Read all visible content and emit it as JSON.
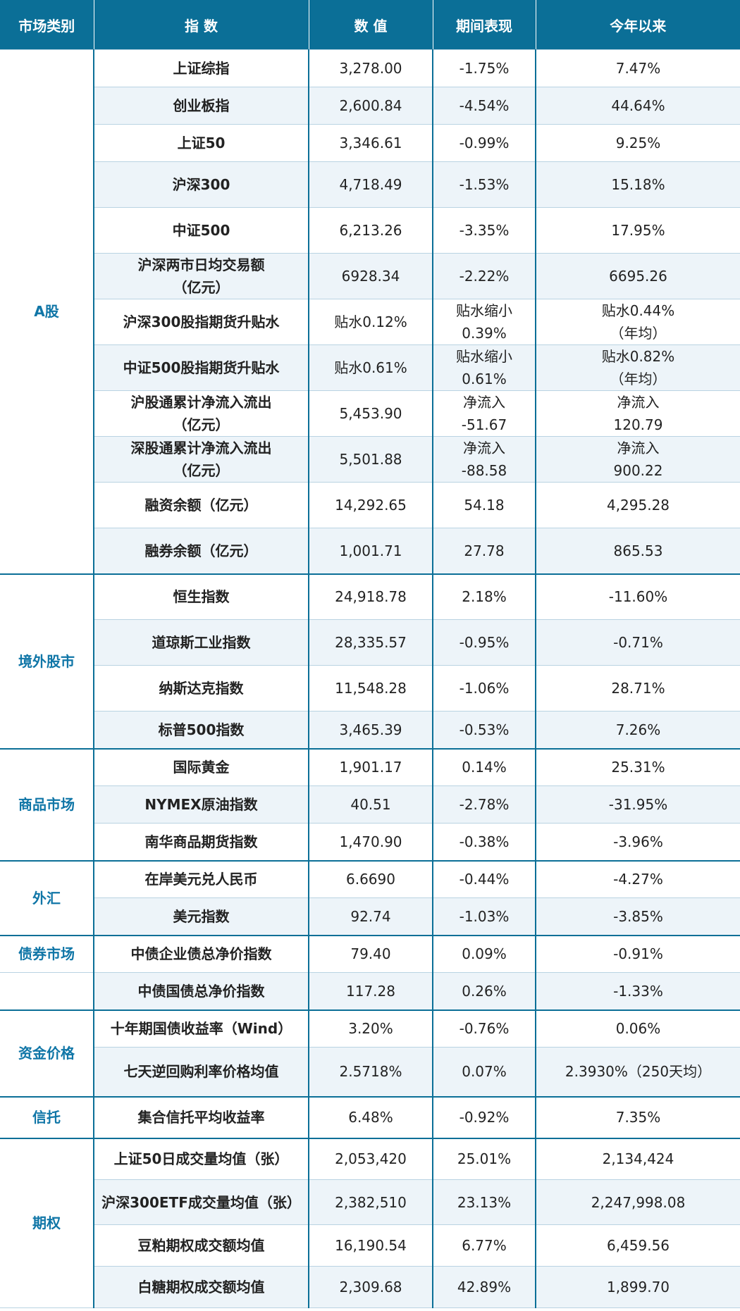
{
  "headers": {
    "category": "市场类别",
    "index": "指 数",
    "value": "数 值",
    "period": "期间表现",
    "ytd": "今年以来"
  },
  "rows": [
    {
      "category": "A股",
      "name": "上证综指",
      "value": "3,278.00",
      "period": "-1.75%",
      "ytd": "7.47%"
    },
    {
      "name": "创业板指",
      "value": "2,600.84",
      "period": "-4.54%",
      "ytd": "44.64%"
    },
    {
      "name": "上证50",
      "value": "3,346.61",
      "period": "-0.99%",
      "ytd": "9.25%"
    },
    {
      "name": "沪深300",
      "value": "4,718.49",
      "period": "-1.53%",
      "ytd": "15.18%"
    },
    {
      "name": "中证500",
      "value": "6,213.26",
      "period": "-3.35%",
      "ytd": "17.95%"
    },
    {
      "name": "沪深两市日均交易额\n（亿元）",
      "value": "6928.34",
      "period": "-2.22%",
      "ytd": "6695.26"
    },
    {
      "name": "沪深300股指期货升贴水",
      "value": "贴水0.12%",
      "period": "贴水缩小\n0.39%",
      "ytd": "贴水0.44%\n（年均）"
    },
    {
      "name": "中证500股指期货升贴水",
      "value": "贴水0.61%",
      "period": "贴水缩小\n0.61%",
      "ytd": "贴水0.82%\n（年均）"
    },
    {
      "name": "沪股通累计净流入流出\n（亿元）",
      "value": "5,453.90",
      "period": "净流入\n-51.67",
      "ytd": "净流入\n120.79"
    },
    {
      "name": "深股通累计净流入流出\n（亿元）",
      "value": "5,501.88",
      "period": "净流入\n-88.58",
      "ytd": "净流入\n900.22"
    },
    {
      "name": "融资余额（亿元）",
      "value": "14,292.65",
      "period": "54.18",
      "ytd": "4,295.28"
    },
    {
      "name": "融券余额（亿元）",
      "value": "1,001.71",
      "period": "27.78",
      "ytd": "865.53"
    },
    {
      "category": "境外股市",
      "name": "恒生指数",
      "value": "24,918.78",
      "period": "2.18%",
      "ytd": "-11.60%"
    },
    {
      "name": "道琼斯工业指数",
      "value": "28,335.57",
      "period": "-0.95%",
      "ytd": "-0.71%"
    },
    {
      "name": "纳斯达克指数",
      "value": "11,548.28",
      "period": "-1.06%",
      "ytd": "28.71%"
    },
    {
      "name": "标普500指数",
      "value": "3,465.39",
      "period": "-0.53%",
      "ytd": "7.26%"
    },
    {
      "category": "商品市场",
      "name": "国际黄金",
      "value": "1,901.17",
      "period": "0.14%",
      "ytd": "25.31%"
    },
    {
      "name": "NYMEX原油指数",
      "value": "40.51",
      "period": "-2.78%",
      "ytd": "-31.95%"
    },
    {
      "name": "南华商品期货指数",
      "value": "1,470.90",
      "period": "-0.38%",
      "ytd": "-3.96%"
    },
    {
      "category": "外汇",
      "name": "在岸美元兑人民币",
      "value": "6.6690",
      "period": "-0.44%",
      "ytd": "-4.27%"
    },
    {
      "name": "美元指数",
      "value": "92.74",
      "period": "-1.03%",
      "ytd": "-3.85%"
    },
    {
      "category": "债券市场",
      "name": "中债企业债总净价指数",
      "value": "79.40",
      "period": "0.09%",
      "ytd": "-0.91%"
    },
    {
      "name": "中债国债总净价指数",
      "value": "117.28",
      "period": "0.26%",
      "ytd": "-1.33%"
    },
    {
      "category": "资金价格",
      "name": "十年期国债收益率（Wind）",
      "value": "3.20%",
      "period": "-0.76%",
      "ytd": "0.06%"
    },
    {
      "name": "七天逆回购利率价格均值",
      "value": "2.5718%",
      "period": "0.07%",
      "ytd": "2.3930%（250天均）"
    },
    {
      "category": "信托",
      "name": "集合信托平均收益率",
      "value": "6.48%",
      "period": "-0.92%",
      "ytd": "7.35%"
    },
    {
      "category": "期权",
      "name": "上证50日成交量均值（张）",
      "value": "2,053,420",
      "period": "25.01%",
      "ytd": "2,134,424"
    },
    {
      "name": "沪深300ETF成交量均值（张）",
      "value": "2,382,510",
      "period": "23.13%",
      "ytd": "2,247,998.08"
    },
    {
      "name": "豆粕期权成交额均值",
      "value": "16,190.54",
      "period": "6.77%",
      "ytd": "6,459.56"
    },
    {
      "name": "白糖期权成交额均值",
      "value": "2,309.68",
      "period": "42.89%",
      "ytd": "1,899.70"
    }
  ]
}
